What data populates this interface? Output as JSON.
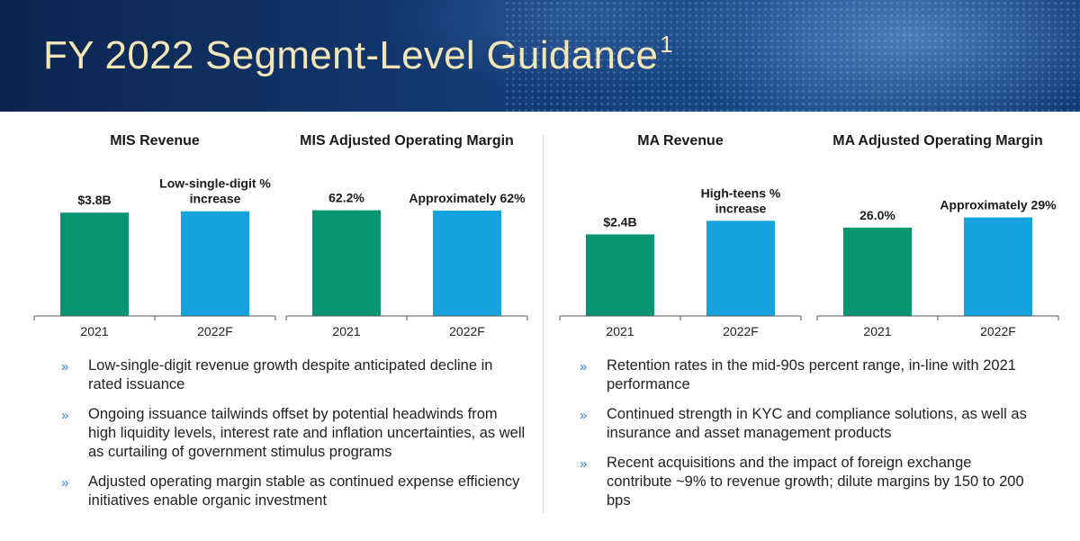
{
  "header": {
    "title": "FY 2022 Segment-Level Guidance",
    "superscript": "1"
  },
  "colors": {
    "actual": "#089573",
    "forecast": "#15A3E0"
  },
  "chart_data": [
    {
      "type": "bar",
      "title": "MIS Revenue",
      "categories": [
        "2021",
        "2022F"
      ],
      "values": [
        3.8,
        3.85
      ],
      "ylim": [
        0,
        5
      ],
      "labels": [
        "$3.8B",
        "Low-single-digit %|increase"
      ]
    },
    {
      "type": "bar",
      "title": "MIS Adjusted Operating Margin",
      "categories": [
        "2021",
        "2022F"
      ],
      "values": [
        62.2,
        62
      ],
      "ylim": [
        0,
        80
      ],
      "labels": [
        "62.2%",
        "Approximately 62%"
      ]
    },
    {
      "type": "bar",
      "title": "MA Revenue",
      "categories": [
        "2021",
        "2022F"
      ],
      "values": [
        2.4,
        2.8
      ],
      "ylim": [
        0,
        4
      ],
      "labels": [
        "$2.4B",
        "High-teens %|increase"
      ]
    },
    {
      "type": "bar",
      "title": "MA Adjusted Operating Margin",
      "categories": [
        "2021",
        "2022F"
      ],
      "values": [
        26.0,
        29
      ],
      "ylim": [
        0,
        40
      ],
      "labels": [
        "26.0%",
        "Approximately 29%"
      ]
    }
  ],
  "bullets_left": [
    "Low-single-digit revenue growth despite anticipated decline in rated issuance",
    "Ongoing issuance tailwinds offset by potential headwinds from high liquidity levels, interest rate and inflation uncertainties, as well as curtailing of government stimulus programs",
    "Adjusted operating margin stable as continued expense efficiency initiatives enable organic investment"
  ],
  "bullets_right": [
    "Retention rates in the mid-90s percent range, in-line with 2021 performance",
    "Continued strength in KYC and compliance solutions, as well as insurance and asset management products",
    "Recent acquisitions and the impact of foreign exchange contribute ~9% to revenue growth; dilute margins by 150 to 200 bps"
  ],
  "bullet_marker": "»"
}
